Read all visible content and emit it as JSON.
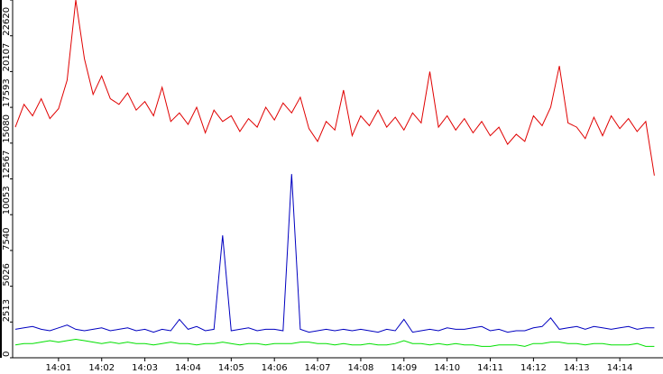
{
  "chart_data": {
    "type": "line",
    "x": [
      0,
      0.2,
      0.4,
      0.6,
      0.8,
      1,
      1.2,
      1.4,
      1.6,
      1.8,
      2,
      2.2,
      2.4,
      2.6,
      2.8,
      3,
      3.2,
      3.4,
      3.6,
      3.8,
      4,
      4.2,
      4.4,
      4.6,
      4.8,
      5,
      5.2,
      5.4,
      5.6,
      5.8,
      6,
      6.2,
      6.4,
      6.6,
      6.8,
      7,
      7.2,
      7.4,
      7.6,
      7.8,
      8,
      8.2,
      8.4,
      8.6,
      8.8,
      9,
      9.2,
      9.4,
      9.6,
      9.8,
      10,
      10.2,
      10.4,
      10.6,
      10.8,
      11,
      11.2,
      11.4,
      11.6,
      11.8,
      12,
      12.2,
      12.4,
      12.6,
      12.8,
      13,
      13.2,
      13.4,
      13.6,
      13.8,
      14,
      14.2,
      14.4,
      14.6,
      14.8
    ],
    "series": [
      {
        "color": "#e00000",
        "values": [
          16200,
          17800,
          17000,
          18200,
          16800,
          17500,
          19500,
          25134,
          21000,
          18500,
          19800,
          18200,
          17800,
          18600,
          17400,
          18000,
          17000,
          19000,
          16600,
          17200,
          16400,
          17600,
          15800,
          17400,
          16600,
          17000,
          15900,
          16800,
          16200,
          17600,
          16700,
          17900,
          17200,
          18300,
          16100,
          15200,
          16600,
          16000,
          18800,
          15600,
          17000,
          16300,
          17400,
          16200,
          16900,
          16000,
          17200,
          16500,
          20100,
          16200,
          17000,
          16000,
          16800,
          15800,
          16600,
          15600,
          16200,
          15000,
          15700,
          15200,
          17000,
          16300,
          17600,
          20500,
          16500,
          16200,
          15400,
          16900,
          15600,
          17000,
          16100,
          16800,
          15900,
          16600,
          12800
        ]
      },
      {
        "color": "#0000c0",
        "values": [
          2000,
          2100,
          2200,
          2000,
          1900,
          2100,
          2300,
          2000,
          1900,
          2000,
          2100,
          1900,
          2000,
          2100,
          1900,
          2000,
          1800,
          2000,
          1900,
          2700,
          2000,
          2200,
          1900,
          2000,
          8600,
          1900,
          2000,
          2100,
          1900,
          2000,
          2000,
          1900,
          12900,
          2000,
          1800,
          1900,
          2000,
          1900,
          2000,
          1900,
          2000,
          1900,
          1800,
          2000,
          1900,
          2700,
          1800,
          1900,
          2000,
          1900,
          2100,
          2000,
          2000,
          2100,
          2200,
          1900,
          2000,
          1800,
          1900,
          1900,
          2100,
          2200,
          2800,
          2000,
          2100,
          2200,
          2000,
          2200,
          2100,
          2000,
          2100,
          2200,
          2000,
          2100,
          2100
        ]
      },
      {
        "color": "#00e000",
        "values": [
          900,
          1000,
          1000,
          1100,
          1200,
          1100,
          1200,
          1300,
          1200,
          1100,
          1000,
          1100,
          1000,
          1100,
          1000,
          1000,
          900,
          1000,
          1100,
          1000,
          1000,
          900,
          1000,
          1000,
          1100,
          1000,
          900,
          1000,
          1000,
          900,
          1000,
          1000,
          1000,
          1100,
          1100,
          1000,
          1000,
          900,
          1000,
          900,
          900,
          1000,
          900,
          900,
          1000,
          1200,
          1000,
          1000,
          900,
          1000,
          900,
          1000,
          900,
          900,
          800,
          800,
          900,
          900,
          900,
          800,
          1000,
          1000,
          1100,
          1100,
          1000,
          1000,
          900,
          1000,
          1000,
          900,
          900,
          900,
          1000,
          800,
          800
        ]
      }
    ],
    "xlim": [
      0,
      15
    ],
    "xticks": [
      {
        "value": 1,
        "label": "14:01"
      },
      {
        "value": 2,
        "label": "14:02"
      },
      {
        "value": 3,
        "label": "14:03"
      },
      {
        "value": 4,
        "label": "14:04"
      },
      {
        "value": 5,
        "label": "14:05"
      },
      {
        "value": 6,
        "label": "14:06"
      },
      {
        "value": 7,
        "label": "14:07"
      },
      {
        "value": 8,
        "label": "14:08"
      },
      {
        "value": 9,
        "label": "14:09"
      },
      {
        "value": 10,
        "label": "14:10"
      },
      {
        "value": 11,
        "label": "14:11"
      },
      {
        "value": 12,
        "label": "14:12"
      },
      {
        "value": 13,
        "label": "14:13"
      },
      {
        "value": 14,
        "label": "14:14"
      }
    ],
    "ylim": [
      0,
      25134
    ],
    "yticks": [
      0,
      2513,
      5026,
      7540,
      10053,
      12567,
      15080,
      17593,
      20107,
      22620,
      25134
    ]
  }
}
